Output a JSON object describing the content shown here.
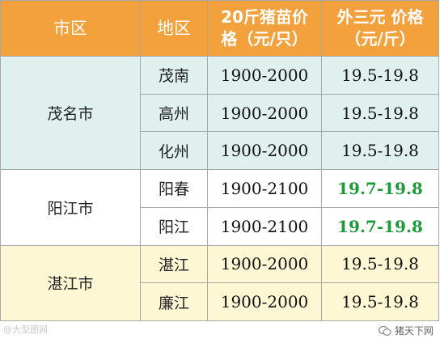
{
  "table": {
    "headers": {
      "city": "市区",
      "district": "地区",
      "piglet_line1": "20斤猪苗价",
      "piglet_line2": "格（元/只）",
      "hog_line1": "外三元 价格",
      "hog_line2": "（元/斤）"
    },
    "groups": [
      {
        "city": "茂名市",
        "rows": [
          {
            "district": "茂南",
            "piglet_price": "1900-2000",
            "hog_price": "19.5-19.8",
            "highlight": false
          },
          {
            "district": "高州",
            "piglet_price": "1900-2000",
            "hog_price": "19.5-19.8",
            "highlight": false
          },
          {
            "district": "化州",
            "piglet_price": "1900-2000",
            "hog_price": "19.5-19.8",
            "highlight": false
          }
        ]
      },
      {
        "city": "阳江市",
        "rows": [
          {
            "district": "阳春",
            "piglet_price": "1900-2100",
            "hog_price": "19.7-19.8",
            "highlight": true
          },
          {
            "district": "阳江",
            "piglet_price": "1900-2100",
            "hog_price": "19.7-19.8",
            "highlight": true
          }
        ]
      },
      {
        "city": "湛江市",
        "rows": [
          {
            "district": "湛江",
            "piglet_price": "1900-2000",
            "hog_price": "19.5-19.8",
            "highlight": false
          },
          {
            "district": "廉江",
            "piglet_price": "1900-2000",
            "hog_price": "19.5-19.8",
            "highlight": false
          }
        ]
      }
    ],
    "colors": {
      "header_bg": "#f2a13c",
      "highlight_text": "#1f9a3a",
      "maoming_bg": "#dff0ef",
      "zhanjiang_bg": "#fdf7d4"
    }
  },
  "footer": {
    "left_text": "@大型图网",
    "right_text": "猪天下网",
    "right_icon": "wechat-icon"
  }
}
